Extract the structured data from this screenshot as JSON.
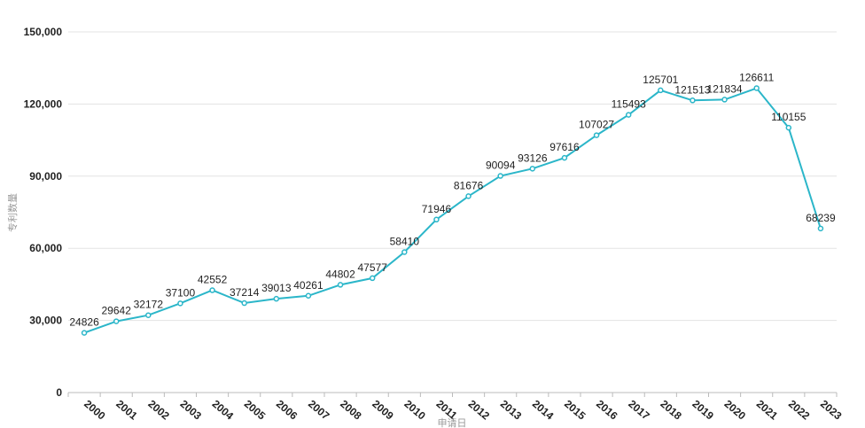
{
  "chart_data": {
    "type": "line",
    "xlabel": "申请日",
    "ylabel": "专利数量",
    "ylim": [
      0,
      150000
    ],
    "yticks": [
      0,
      30000,
      60000,
      90000,
      120000,
      150000
    ],
    "ytick_labels": [
      "0",
      "30,000",
      "60,000",
      "90,000",
      "120,000",
      "150,000"
    ],
    "grid": true,
    "line_color": "#2bb6c9",
    "categories": [
      "2000",
      "2001",
      "2002",
      "2003",
      "2004",
      "2005",
      "2006",
      "2007",
      "2008",
      "2009",
      "2010",
      "2011",
      "2012",
      "2013",
      "2014",
      "2015",
      "2016",
      "2017",
      "2018",
      "2019",
      "2020",
      "2021",
      "2022",
      "2023"
    ],
    "values": [
      24826,
      29642,
      32172,
      37100,
      42552,
      37214,
      39013,
      40261,
      44802,
      47577,
      58410,
      71946,
      81676,
      90094,
      93126,
      97616,
      107027,
      115493,
      125701,
      121513,
      121834,
      126611,
      110155,
      68239
    ]
  }
}
